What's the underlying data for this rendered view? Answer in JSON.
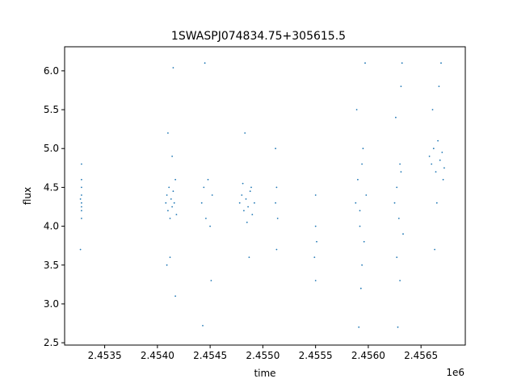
{
  "chart_data": {
    "type": "scatter",
    "title": "1SWASPJ074834.75+305615.5",
    "xlabel": "time",
    "ylabel": "flux",
    "x_offset_label": "1e6",
    "xlim": [
      2.45312,
      2.45692
    ],
    "ylim": [
      2.47,
      6.31
    ],
    "x_ticks": [
      2.4535,
      2.454,
      2.4545,
      2.455,
      2.4555,
      2.456,
      2.4565
    ],
    "x_tick_labels": [
      "2.4535",
      "2.4540",
      "2.4545",
      "2.4550",
      "2.4555",
      "2.4560",
      "2.4565"
    ],
    "y_ticks": [
      2.5,
      3.0,
      3.5,
      4.0,
      4.5,
      5.0,
      5.5,
      6.0
    ],
    "y_tick_labels": [
      "2.5",
      "3.0",
      "3.5",
      "4.0",
      "4.5",
      "5.0",
      "5.5",
      "6.0"
    ],
    "grid": false,
    "point_color": "#1f77b4",
    "series": [
      {
        "x": [
          2.45328,
          2.45328,
          2.45328,
          2.45328,
          2.45328,
          2.45328,
          2.45327,
          2.45328,
          2.45327,
          2.45328,
          2.45408,
          2.45409,
          2.4541,
          2.45411,
          2.45412,
          2.45413,
          2.45414,
          2.45415,
          2.45416,
          2.45417,
          2.45418,
          2.4541,
          2.45412,
          2.45415,
          2.45409,
          2.45414,
          2.45417,
          2.45442,
          2.45444,
          2.45446,
          2.45448,
          2.4545,
          2.45452,
          2.45445,
          2.45451,
          2.45443,
          2.45478,
          2.4548,
          2.45482,
          2.45484,
          2.45486,
          2.45488,
          2.4549,
          2.45492,
          2.45481,
          2.45485,
          2.45489,
          2.45483,
          2.45487,
          2.45512,
          2.45513,
          2.45514,
          2.45513,
          2.45512,
          2.45549,
          2.4555,
          2.4555,
          2.45551,
          2.4555,
          2.45588,
          2.4559,
          2.45592,
          2.45594,
          2.45596,
          2.45598,
          2.45589,
          2.45593,
          2.45597,
          2.45591,
          2.45595,
          2.45592,
          2.45594,
          2.45625,
          2.45627,
          2.45629,
          2.45631,
          2.45633,
          2.45626,
          2.4563,
          2.45632,
          2.45628,
          2.4563,
          2.45627,
          2.45631,
          2.45658,
          2.4566,
          2.45662,
          2.45664,
          2.45666,
          2.45668,
          2.4567,
          2.45672,
          2.45661,
          2.45665,
          2.45669,
          2.45663,
          2.45667,
          2.45671
        ],
        "y": [
          4.3,
          4.5,
          4.2,
          4.4,
          4.1,
          4.6,
          4.35,
          4.25,
          3.7,
          4.8,
          4.3,
          4.4,
          4.2,
          4.5,
          4.1,
          4.35,
          4.25,
          4.45,
          4.3,
          4.6,
          4.15,
          5.2,
          3.6,
          6.04,
          3.5,
          4.9,
          3.1,
          4.3,
          4.5,
          4.1,
          4.6,
          4.0,
          4.4,
          6.1,
          3.3,
          2.72,
          4.3,
          4.4,
          4.2,
          4.35,
          4.25,
          4.45,
          4.15,
          4.3,
          4.55,
          4.05,
          4.5,
          5.2,
          3.6,
          4.3,
          4.5,
          4.1,
          3.7,
          5.0,
          3.6,
          4.0,
          3.3,
          3.8,
          4.4,
          4.3,
          4.6,
          4.0,
          4.8,
          3.8,
          4.4,
          5.5,
          3.2,
          6.1,
          2.7,
          5.0,
          4.2,
          3.5,
          4.3,
          4.5,
          4.1,
          4.7,
          3.9,
          5.4,
          3.3,
          6.1,
          2.7,
          4.8,
          3.6,
          5.8,
          4.9,
          4.8,
          5.0,
          4.7,
          5.1,
          4.85,
          4.95,
          4.75,
          5.5,
          4.3,
          6.1,
          3.7,
          5.8,
          4.6
        ]
      }
    ]
  }
}
